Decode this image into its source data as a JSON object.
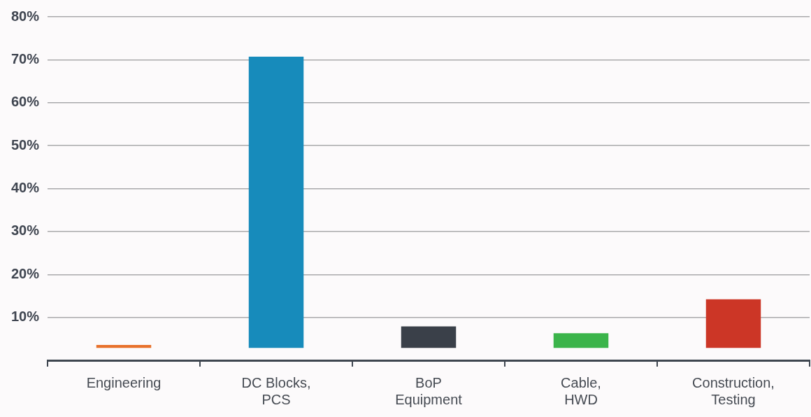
{
  "chart_data": {
    "type": "bar",
    "categories": [
      "Engineering",
      "DC Blocks, PCS",
      "BoP Equipment",
      "Cable, HWD",
      "Construction, Testing"
    ],
    "base": [
      2.9,
      2.9,
      2.9,
      2.9,
      2.9
    ],
    "values": [
      0.7,
      67.8,
      5,
      3.4,
      11.3
    ],
    "colors": [
      "#e8722c",
      "#178bbb",
      "#3a4049",
      "#3bb44a",
      "#cc3626"
    ],
    "ylim": [
      0,
      80
    ],
    "yticks": [
      {
        "value": 10,
        "label": "10%"
      },
      {
        "value": 20,
        "label": "20%"
      },
      {
        "value": 30,
        "label": "30%"
      },
      {
        "value": 40,
        "label": "40%"
      },
      {
        "value": 50,
        "label": "50%"
      },
      {
        "value": 60,
        "label": "60%"
      },
      {
        "value": 70,
        "label": "70%"
      },
      {
        "value": 80,
        "label": "80%"
      }
    ],
    "grid": "y",
    "legend": false
  }
}
